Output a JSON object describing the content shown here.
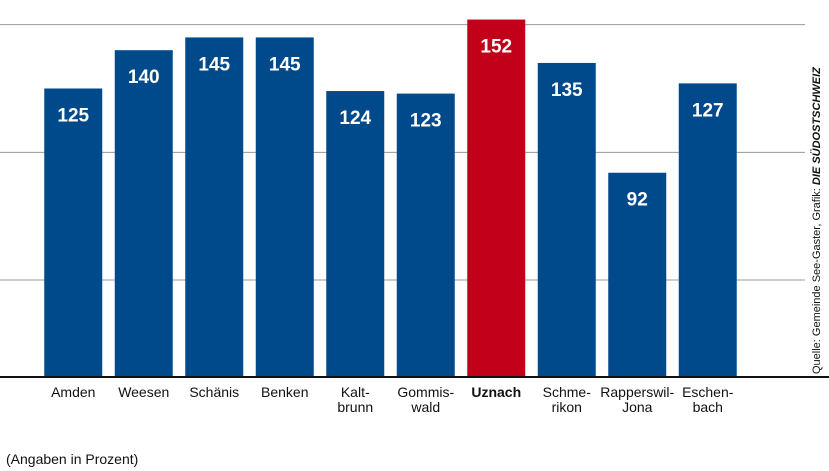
{
  "chart_data": {
    "type": "bar",
    "categories": [
      [
        "Amden"
      ],
      [
        "Weesen"
      ],
      [
        "Schänis"
      ],
      [
        "Benken"
      ],
      [
        "Kalt-",
        "brunn"
      ],
      [
        "Gommis-",
        "wald"
      ],
      [
        "Uznach"
      ],
      [
        "Schme-",
        "rikon"
      ],
      [
        "Rapperswil-",
        "Jona"
      ],
      [
        "Eschen-",
        "bach"
      ]
    ],
    "values": [
      125,
      140,
      145,
      145,
      124,
      123,
      152,
      135,
      92,
      127
    ],
    "color": "#004a8c",
    "highlight": "Uznach",
    "highlight_color": "#c3001a",
    "ylim": [
      12,
      153
    ],
    "yticks": [
      50,
      100,
      150
    ],
    "grid": true,
    "note": "(Angaben in Prozent)",
    "source": "Quelle: Gemeinde See-Gaster, Grafik:",
    "source_brand": "DIE SÜDOSTSCHWEIZ"
  }
}
